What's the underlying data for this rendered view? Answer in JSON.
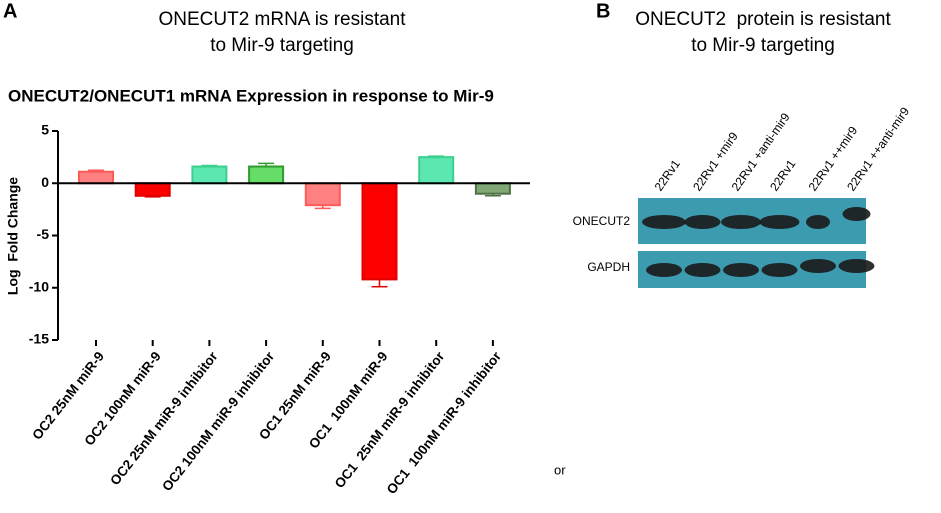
{
  "panel_labels": [
    "A",
    "B"
  ],
  "headings": [
    [
      "ONECUT2 mRNA is resistant",
      "to Mir-9 targeting"
    ],
    [
      "ONECUT2  protein is resistant",
      "to Mir-9 targeting"
    ]
  ],
  "chart_data": {
    "type": "bar",
    "title": "ONECUT2/ONECUT1 mRNA Expression in response to Mir-9",
    "y_label": "Log  Fold Change",
    "categories": [
      "OC2 25nM miR-9",
      "OC2 100nM miR-9",
      "OC2 25nM miR-9 inhibitor",
      "OC2 100nM miR-9 inhibitor",
      "OC1 25nM miR-9",
      "OC1  100nM miR-9",
      "OC1  25nM miR-9 inhibitor",
      "OC1  100nM miR-9 inhibitor"
    ],
    "values": [
      1.1,
      -1.2,
      1.6,
      1.6,
      -2.1,
      -9.2,
      2.5,
      -1.0
    ],
    "errors": [
      0.15,
      0.1,
      0.1,
      0.3,
      0.3,
      0.7,
      0.1,
      0.2
    ],
    "colors": [
      "#ff8080",
      "#ff0000",
      "#5ce6b0",
      "#66dd66",
      "#ff8080",
      "#ff0000",
      "#5ce6b0",
      "#7fa874"
    ],
    "edge_colors": [
      "#ff5a5a",
      "#e00000",
      "#3cd08f",
      "#2f9a2f",
      "#ff5a5a",
      "#e00000",
      "#3cd08f",
      "#4e7044"
    ],
    "ylim": [
      -15,
      5
    ],
    "yticks": [
      5,
      0,
      -5,
      -10,
      -15
    ],
    "annotation": "or"
  },
  "blot": {
    "lanes": [
      "22Rv1",
      "22Rv1 +mir9",
      "22Rv1 +anti-mir9",
      "22Rv1",
      "22Rv1 ++mir9",
      "22Rv1 ++anti-mir9"
    ],
    "rows": [
      "ONECUT2",
      "GAPDH"
    ]
  }
}
